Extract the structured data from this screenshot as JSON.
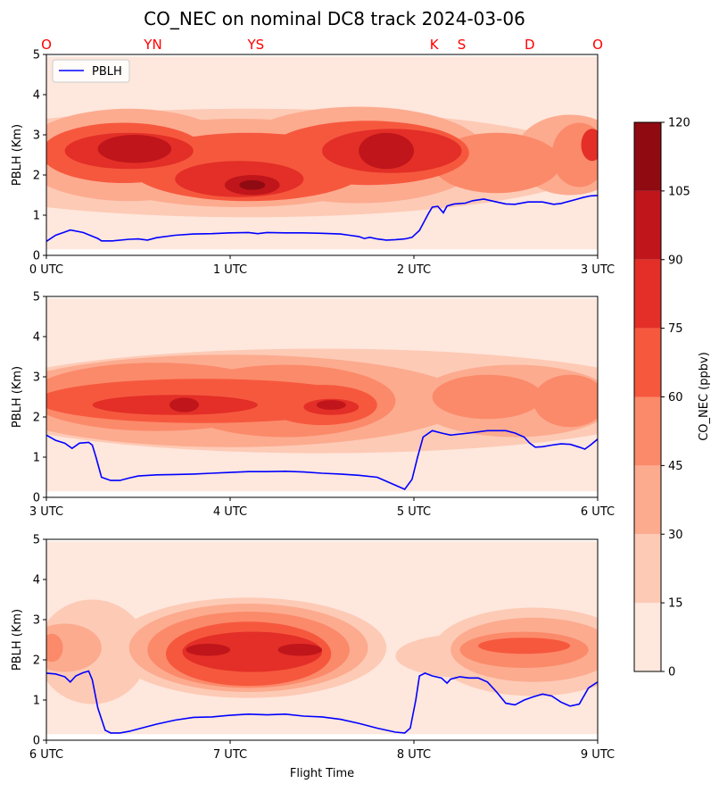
{
  "chart_data": {
    "type": "heatmap",
    "title": "CO_NEC on nominal DC8 track 2024-03-06",
    "xlabel": "Flight Time",
    "ylabel": "PBLH (Km)",
    "ylim": [
      0,
      5
    ],
    "yticks": [
      "0",
      "1",
      "2",
      "3",
      "4",
      "5"
    ],
    "legend": {
      "label": "PBLH",
      "placement": "upper-left of top panel"
    },
    "colorbar": {
      "label": "CO_NEC (ppbv)",
      "levels": [
        0,
        15,
        30,
        45,
        60,
        75,
        90,
        105,
        120
      ],
      "tick_labels": [
        "0",
        "15",
        "30",
        "45",
        "60",
        "75",
        "90",
        "105",
        "120"
      ],
      "colors": [
        "#fee7dd",
        "#fdcab5",
        "#fcab8f",
        "#fb8a6a",
        "#f6583e",
        "#e32f27",
        "#bf151b",
        "#900a12"
      ]
    },
    "top_labels": [
      {
        "text": "O",
        "x": 0.0
      },
      {
        "text": "YN",
        "x": 0.58
      },
      {
        "text": "YS",
        "x": 1.14
      },
      {
        "text": "K",
        "x": 2.11
      },
      {
        "text": "S",
        "x": 2.26
      },
      {
        "text": "D",
        "x": 2.63
      },
      {
        "text": "O",
        "x": 3.0
      }
    ],
    "label_color": "#ff0000",
    "pblh_color": "#0000ff",
    "panels": [
      {
        "x_range": [
          0,
          3
        ],
        "xticks": [
          "0 UTC",
          "1 UTC",
          "2 UTC",
          "3 UTC"
        ],
        "pblh": [
          [
            0,
            0.35
          ],
          [
            0.05,
            0.5
          ],
          [
            0.1,
            0.58
          ],
          [
            0.13,
            0.63
          ],
          [
            0.2,
            0.57
          ],
          [
            0.28,
            0.42
          ],
          [
            0.3,
            0.36
          ],
          [
            0.36,
            0.36
          ],
          [
            0.45,
            0.4
          ],
          [
            0.5,
            0.41
          ],
          [
            0.55,
            0.38
          ],
          [
            0.6,
            0.44
          ],
          [
            0.7,
            0.5
          ],
          [
            0.8,
            0.53
          ],
          [
            0.9,
            0.54
          ],
          [
            1.0,
            0.56
          ],
          [
            1.1,
            0.57
          ],
          [
            1.15,
            0.54
          ],
          [
            1.2,
            0.57
          ],
          [
            1.3,
            0.56
          ],
          [
            1.4,
            0.56
          ],
          [
            1.5,
            0.55
          ],
          [
            1.6,
            0.53
          ],
          [
            1.65,
            0.5
          ],
          [
            1.7,
            0.47
          ],
          [
            1.73,
            0.42
          ],
          [
            1.76,
            0.45
          ],
          [
            1.8,
            0.41
          ],
          [
            1.85,
            0.38
          ],
          [
            1.9,
            0.39
          ],
          [
            1.95,
            0.41
          ],
          [
            1.99,
            0.45
          ],
          [
            2.03,
            0.62
          ],
          [
            2.08,
            1.05
          ],
          [
            2.1,
            1.2
          ],
          [
            2.13,
            1.22
          ],
          [
            2.16,
            1.06
          ],
          [
            2.18,
            1.23
          ],
          [
            2.22,
            1.28
          ],
          [
            2.28,
            1.3
          ],
          [
            2.32,
            1.36
          ],
          [
            2.38,
            1.4
          ],
          [
            2.45,
            1.33
          ],
          [
            2.5,
            1.28
          ],
          [
            2.55,
            1.27
          ],
          [
            2.62,
            1.33
          ],
          [
            2.7,
            1.33
          ],
          [
            2.76,
            1.27
          ],
          [
            2.8,
            1.29
          ],
          [
            2.88,
            1.39
          ],
          [
            2.92,
            1.44
          ],
          [
            2.96,
            1.48
          ],
          [
            3.0,
            1.49
          ]
        ],
        "blobs": [
          {
            "x": 1.1,
            "y": 2.5,
            "rx": 2.2,
            "ry": 1.7,
            "level": 0
          },
          {
            "x": 1.1,
            "y": 2.3,
            "rx": 1.9,
            "ry": 1.35,
            "level": 1
          },
          {
            "x": 0.45,
            "y": 2.5,
            "rx": 0.6,
            "ry": 1.15,
            "level": 2
          },
          {
            "x": 1.05,
            "y": 2.3,
            "rx": 0.9,
            "ry": 1.1,
            "level": 2
          },
          {
            "x": 1.7,
            "y": 2.5,
            "rx": 0.7,
            "ry": 1.2,
            "level": 2
          },
          {
            "x": 2.85,
            "y": 2.5,
            "rx": 0.3,
            "ry": 1.0,
            "level": 2
          },
          {
            "x": 2.45,
            "y": 2.3,
            "rx": 0.35,
            "ry": 0.75,
            "level": 3
          },
          {
            "x": 2.9,
            "y": 2.5,
            "rx": 0.15,
            "ry": 0.8,
            "level": 3
          },
          {
            "x": 0.42,
            "y": 2.55,
            "rx": 0.45,
            "ry": 0.75,
            "level": 4
          },
          {
            "x": 1.1,
            "y": 2.2,
            "rx": 0.65,
            "ry": 0.85,
            "level": 4
          },
          {
            "x": 1.75,
            "y": 2.55,
            "rx": 0.55,
            "ry": 0.8,
            "level": 4
          },
          {
            "x": 0.45,
            "y": 2.6,
            "rx": 0.35,
            "ry": 0.45,
            "level": 5
          },
          {
            "x": 1.05,
            "y": 1.9,
            "rx": 0.35,
            "ry": 0.45,
            "level": 5
          },
          {
            "x": 1.88,
            "y": 2.6,
            "rx": 0.38,
            "ry": 0.55,
            "level": 5
          },
          {
            "x": 2.97,
            "y": 2.75,
            "rx": 0.06,
            "ry": 0.4,
            "level": 5
          },
          {
            "x": 0.48,
            "y": 2.65,
            "rx": 0.2,
            "ry": 0.35,
            "level": 6
          },
          {
            "x": 1.12,
            "y": 1.75,
            "rx": 0.15,
            "ry": 0.25,
            "level": 6
          },
          {
            "x": 1.85,
            "y": 2.6,
            "rx": 0.15,
            "ry": 0.45,
            "level": 6
          },
          {
            "x": 1.12,
            "y": 1.75,
            "rx": 0.07,
            "ry": 0.12,
            "level": 7
          }
        ]
      },
      {
        "x_range": [
          3,
          6
        ],
        "xticks": [
          "3 UTC",
          "4 UTC",
          "5 UTC",
          "6 UTC"
        ],
        "pblh": [
          [
            3.0,
            1.55
          ],
          [
            3.05,
            1.42
          ],
          [
            3.1,
            1.35
          ],
          [
            3.14,
            1.22
          ],
          [
            3.18,
            1.35
          ],
          [
            3.23,
            1.37
          ],
          [
            3.25,
            1.3
          ],
          [
            3.27,
            1.0
          ],
          [
            3.3,
            0.5
          ],
          [
            3.35,
            0.42
          ],
          [
            3.4,
            0.42
          ],
          [
            3.45,
            0.48
          ],
          [
            3.5,
            0.53
          ],
          [
            3.6,
            0.56
          ],
          [
            3.7,
            0.57
          ],
          [
            3.8,
            0.58
          ],
          [
            3.9,
            0.6
          ],
          [
            4.0,
            0.62
          ],
          [
            4.1,
            0.64
          ],
          [
            4.2,
            0.64
          ],
          [
            4.3,
            0.65
          ],
          [
            4.4,
            0.63
          ],
          [
            4.5,
            0.6
          ],
          [
            4.6,
            0.58
          ],
          [
            4.7,
            0.55
          ],
          [
            4.8,
            0.5
          ],
          [
            4.85,
            0.4
          ],
          [
            4.9,
            0.3
          ],
          [
            4.95,
            0.2
          ],
          [
            4.99,
            0.45
          ],
          [
            5.02,
            1.0
          ],
          [
            5.05,
            1.5
          ],
          [
            5.1,
            1.66
          ],
          [
            5.15,
            1.6
          ],
          [
            5.2,
            1.55
          ],
          [
            5.3,
            1.6
          ],
          [
            5.4,
            1.66
          ],
          [
            5.5,
            1.66
          ],
          [
            5.55,
            1.6
          ],
          [
            5.6,
            1.5
          ],
          [
            5.63,
            1.35
          ],
          [
            5.66,
            1.25
          ],
          [
            5.7,
            1.26
          ],
          [
            5.75,
            1.3
          ],
          [
            5.8,
            1.33
          ],
          [
            5.85,
            1.32
          ],
          [
            5.9,
            1.25
          ],
          [
            5.93,
            1.2
          ],
          [
            5.96,
            1.3
          ],
          [
            6.0,
            1.45
          ]
        ],
        "blobs": [
          {
            "x": 4.5,
            "y": 2.3,
            "rx": 2.1,
            "ry": 1.6,
            "level": 0
          },
          {
            "x": 4.5,
            "y": 2.4,
            "rx": 1.95,
            "ry": 1.3,
            "level": 1
          },
          {
            "x": 4.0,
            "y": 2.4,
            "rx": 1.3,
            "ry": 1.15,
            "level": 2
          },
          {
            "x": 5.55,
            "y": 2.4,
            "rx": 0.55,
            "ry": 0.9,
            "level": 2
          },
          {
            "x": 3.6,
            "y": 2.5,
            "rx": 0.7,
            "ry": 0.85,
            "level": 3
          },
          {
            "x": 4.3,
            "y": 2.4,
            "rx": 0.6,
            "ry": 0.9,
            "level": 3
          },
          {
            "x": 5.4,
            "y": 2.5,
            "rx": 0.3,
            "ry": 0.55,
            "level": 3
          },
          {
            "x": 5.85,
            "y": 2.4,
            "rx": 0.2,
            "ry": 0.65,
            "level": 3
          },
          {
            "x": 3.85,
            "y": 2.4,
            "rx": 0.9,
            "ry": 0.55,
            "level": 4
          },
          {
            "x": 4.5,
            "y": 2.3,
            "rx": 0.3,
            "ry": 0.5,
            "level": 4
          },
          {
            "x": 3.7,
            "y": 2.3,
            "rx": 0.45,
            "ry": 0.25,
            "level": 5
          },
          {
            "x": 4.55,
            "y": 2.25,
            "rx": 0.15,
            "ry": 0.2,
            "level": 5
          },
          {
            "x": 3.75,
            "y": 2.3,
            "rx": 0.08,
            "ry": 0.18,
            "level": 6
          },
          {
            "x": 4.55,
            "y": 2.3,
            "rx": 0.08,
            "ry": 0.12,
            "level": 6
          }
        ]
      },
      {
        "x_range": [
          6,
          9
        ],
        "xticks": [
          "6 UTC",
          "7 UTC",
          "8 UTC",
          "9 UTC"
        ],
        "pblh": [
          [
            6.0,
            1.67
          ],
          [
            6.05,
            1.65
          ],
          [
            6.1,
            1.58
          ],
          [
            6.13,
            1.45
          ],
          [
            6.16,
            1.6
          ],
          [
            6.2,
            1.68
          ],
          [
            6.23,
            1.72
          ],
          [
            6.25,
            1.5
          ],
          [
            6.28,
            0.8
          ],
          [
            6.32,
            0.25
          ],
          [
            6.35,
            0.18
          ],
          [
            6.4,
            0.18
          ],
          [
            6.45,
            0.22
          ],
          [
            6.5,
            0.28
          ],
          [
            6.6,
            0.4
          ],
          [
            6.7,
            0.5
          ],
          [
            6.8,
            0.57
          ],
          [
            6.9,
            0.58
          ],
          [
            7.0,
            0.62
          ],
          [
            7.1,
            0.65
          ],
          [
            7.2,
            0.63
          ],
          [
            7.3,
            0.65
          ],
          [
            7.4,
            0.6
          ],
          [
            7.5,
            0.58
          ],
          [
            7.6,
            0.52
          ],
          [
            7.7,
            0.42
          ],
          [
            7.8,
            0.3
          ],
          [
            7.9,
            0.2
          ],
          [
            7.95,
            0.18
          ],
          [
            7.98,
            0.3
          ],
          [
            8.01,
            1.0
          ],
          [
            8.03,
            1.6
          ],
          [
            8.06,
            1.67
          ],
          [
            8.1,
            1.6
          ],
          [
            8.15,
            1.55
          ],
          [
            8.18,
            1.42
          ],
          [
            8.2,
            1.52
          ],
          [
            8.25,
            1.58
          ],
          [
            8.3,
            1.55
          ],
          [
            8.35,
            1.55
          ],
          [
            8.4,
            1.45
          ],
          [
            8.45,
            1.2
          ],
          [
            8.5,
            0.92
          ],
          [
            8.55,
            0.88
          ],
          [
            8.6,
            1.0
          ],
          [
            8.65,
            1.08
          ],
          [
            8.7,
            1.15
          ],
          [
            8.75,
            1.1
          ],
          [
            8.8,
            0.95
          ],
          [
            8.85,
            0.85
          ],
          [
            8.9,
            0.9
          ],
          [
            8.95,
            1.3
          ],
          [
            9.0,
            1.45
          ]
        ],
        "blobs": [
          {
            "x": 6.25,
            "y": 2.2,
            "rx": 0.3,
            "ry": 1.3,
            "level": 1
          },
          {
            "x": 7.1,
            "y": 2.3,
            "rx": 0.75,
            "ry": 1.25,
            "level": 1
          },
          {
            "x": 8.65,
            "y": 2.2,
            "rx": 0.55,
            "ry": 1.1,
            "level": 1
          },
          {
            "x": 8.3,
            "y": 2.1,
            "rx": 0.4,
            "ry": 0.55,
            "level": 1
          },
          {
            "x": 6.1,
            "y": 2.3,
            "rx": 0.2,
            "ry": 0.6,
            "level": 2
          },
          {
            "x": 7.1,
            "y": 2.3,
            "rx": 0.65,
            "ry": 1.1,
            "level": 2
          },
          {
            "x": 8.65,
            "y": 2.25,
            "rx": 0.45,
            "ry": 0.8,
            "level": 2
          },
          {
            "x": 6.03,
            "y": 2.3,
            "rx": 0.06,
            "ry": 0.35,
            "level": 3
          },
          {
            "x": 7.1,
            "y": 2.25,
            "rx": 0.55,
            "ry": 0.95,
            "level": 3
          },
          {
            "x": 8.6,
            "y": 2.25,
            "rx": 0.35,
            "ry": 0.45,
            "level": 3
          },
          {
            "x": 7.1,
            "y": 2.15,
            "rx": 0.45,
            "ry": 0.8,
            "level": 4
          },
          {
            "x": 8.6,
            "y": 2.35,
            "rx": 0.25,
            "ry": 0.2,
            "level": 4
          },
          {
            "x": 7.12,
            "y": 2.2,
            "rx": 0.38,
            "ry": 0.5,
            "level": 5
          },
          {
            "x": 6.88,
            "y": 2.25,
            "rx": 0.12,
            "ry": 0.15,
            "level": 6
          },
          {
            "x": 7.38,
            "y": 2.25,
            "rx": 0.12,
            "ry": 0.15,
            "level": 6
          }
        ]
      }
    ]
  }
}
